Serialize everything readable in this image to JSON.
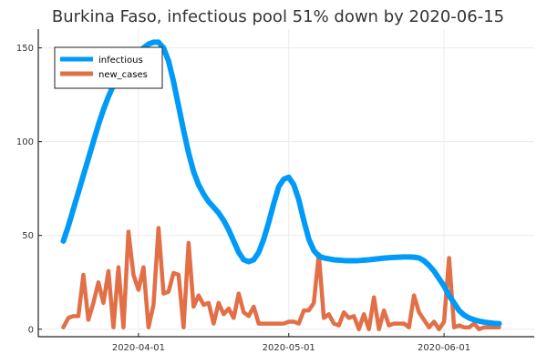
{
  "chart_data": {
    "type": "line",
    "title": "Burkina Faso, infectious pool 51% down by 2020-06-15",
    "xlabel": "",
    "ylabel": "",
    "x_start": "2020-03-17",
    "x_range": [
      "2020-03-12",
      "2020-06-19"
    ],
    "ylim": [
      -4,
      160
    ],
    "grid": true,
    "legend_position": "top-left",
    "x_ticks": [
      {
        "date": "2020-04-01",
        "label": "2020-04-01"
      },
      {
        "date": "2020-05-01",
        "label": "2020-05-01"
      },
      {
        "date": "2020-06-01",
        "label": "2020-06-01"
      }
    ],
    "y_ticks": [
      {
        "value": 0,
        "label": "0"
      },
      {
        "value": 50,
        "label": "50"
      },
      {
        "value": 100,
        "label": "100"
      },
      {
        "value": 150,
        "label": "150"
      }
    ],
    "series": [
      {
        "name": "infectious",
        "color": "#009af9",
        "values": [
          47,
          55,
          64,
          73,
          82,
          91,
          100,
          109,
          117,
          124,
          130,
          135,
          140,
          143,
          146,
          148,
          150,
          152,
          153,
          153,
          150,
          143,
          132,
          119,
          106,
          94,
          84,
          77,
          72,
          68,
          65,
          62,
          58,
          53,
          47,
          41,
          37,
          36,
          37,
          41,
          48,
          57,
          67,
          76,
          80,
          81,
          77,
          69,
          58,
          48,
          42,
          39,
          38,
          37.5,
          37,
          36.8,
          36.6,
          36.5,
          36.5,
          36.6,
          36.8,
          37,
          37.3,
          37.6,
          37.9,
          38.1,
          38.3,
          38.4,
          38.5,
          38.5,
          38.4,
          38,
          36.5,
          34,
          31,
          27,
          23,
          18,
          14,
          10,
          7.5,
          6,
          5,
          4.3,
          3.8,
          3.4,
          3.1,
          3
        ]
      },
      {
        "name": "new_cases",
        "color": "#e26f46",
        "values": [
          1,
          6,
          7,
          7,
          29,
          5,
          14,
          25,
          14,
          31,
          1,
          33,
          1,
          52,
          29,
          21,
          33,
          1,
          13,
          54,
          19,
          20,
          30,
          29,
          1,
          46,
          12,
          18,
          13,
          14,
          3,
          14,
          8,
          11,
          6,
          19,
          9,
          7,
          12,
          3,
          3,
          3,
          3,
          3,
          3,
          4,
          4,
          3,
          10,
          10,
          14,
          40,
          6,
          8,
          3,
          2,
          9,
          6,
          7,
          0,
          8,
          0,
          17,
          0,
          10,
          2,
          3,
          3,
          3,
          1,
          18,
          9,
          5,
          1,
          4,
          0,
          4,
          38,
          1,
          2,
          1,
          1,
          3,
          0,
          1,
          1,
          1,
          1
        ]
      }
    ]
  }
}
